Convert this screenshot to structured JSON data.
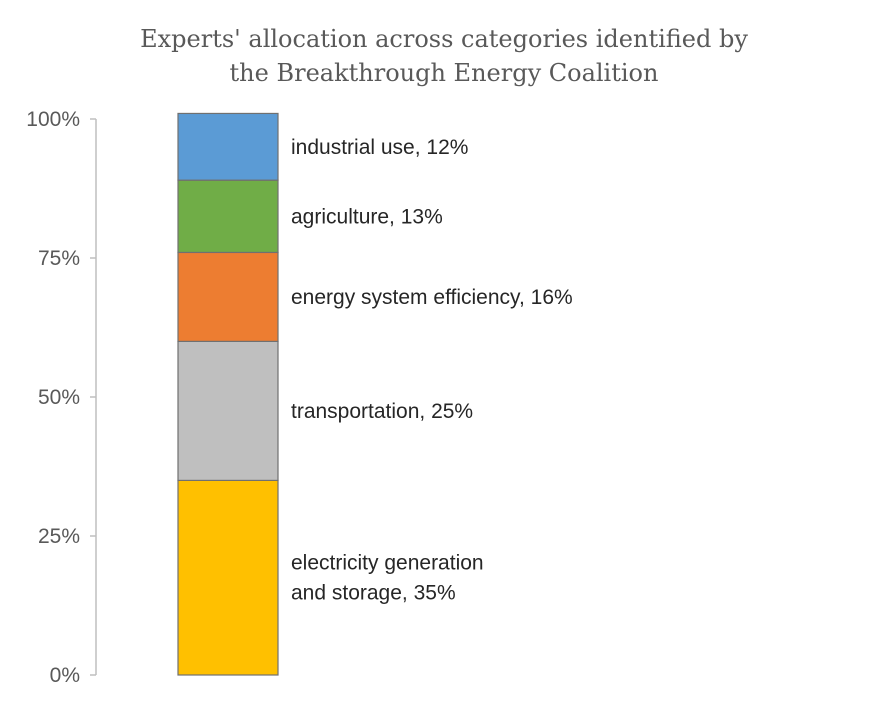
{
  "chart_data": {
    "type": "bar",
    "stacked": true,
    "title_lines": [
      "Experts' allocation across categories identified by",
      "the Breakthrough Energy Coalition"
    ],
    "xlabel": "",
    "ylabel": "",
    "ylim": [
      0,
      100
    ],
    "yticks": [
      "0%",
      "25%",
      "50%",
      "75%",
      "100%"
    ],
    "ytick_values": [
      0,
      25,
      50,
      75,
      100
    ],
    "grid": false,
    "legend": "none",
    "segments": [
      {
        "name": "electricity generation and storage",
        "value": 35,
        "label_lines": [
          "electricity generation",
          "and storage, 35%"
        ],
        "color": "#FFC000"
      },
      {
        "name": "transportation",
        "value": 25,
        "label_lines": [
          "transportation, 25%"
        ],
        "color": "#BFBFBF"
      },
      {
        "name": "energy system efficiency",
        "value": 16,
        "label_lines": [
          "energy system efficiency, 16%"
        ],
        "color": "#ED7D31"
      },
      {
        "name": "agriculture",
        "value": 13,
        "label_lines": [
          "agriculture, 13%"
        ],
        "color": "#70AD47"
      },
      {
        "name": "industrial use",
        "value": 12,
        "label_lines": [
          "industrial use, 12%"
        ],
        "color": "#5B9BD5"
      }
    ]
  }
}
